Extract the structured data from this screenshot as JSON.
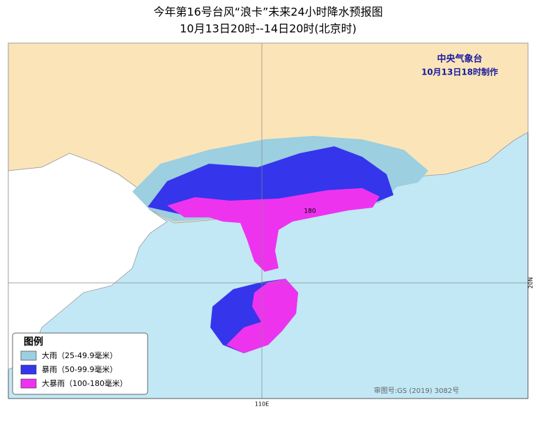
{
  "header": {
    "title": "今年第16号台风“浪卡”未来24小时降水预报图",
    "subtitle": "10月13日20时--14日20时(北京时)"
  },
  "issuer": {
    "agency": "中央气象台",
    "time": "10月13日18时制作"
  },
  "map": {
    "max_label": "180",
    "lat_label": "20N",
    "lon_label": "110E",
    "approval": "审图号:GS (2019) 3082号"
  },
  "legend": {
    "title": "图例",
    "items": [
      {
        "label": "大雨（25-49.9毫米）",
        "color": "#9ccfe0"
      },
      {
        "label": "暴雨（50-99.9毫米）",
        "color": "#3535ec"
      },
      {
        "label": "大暴雨（100-180毫米）",
        "color": "#ee33ee"
      }
    ]
  }
}
